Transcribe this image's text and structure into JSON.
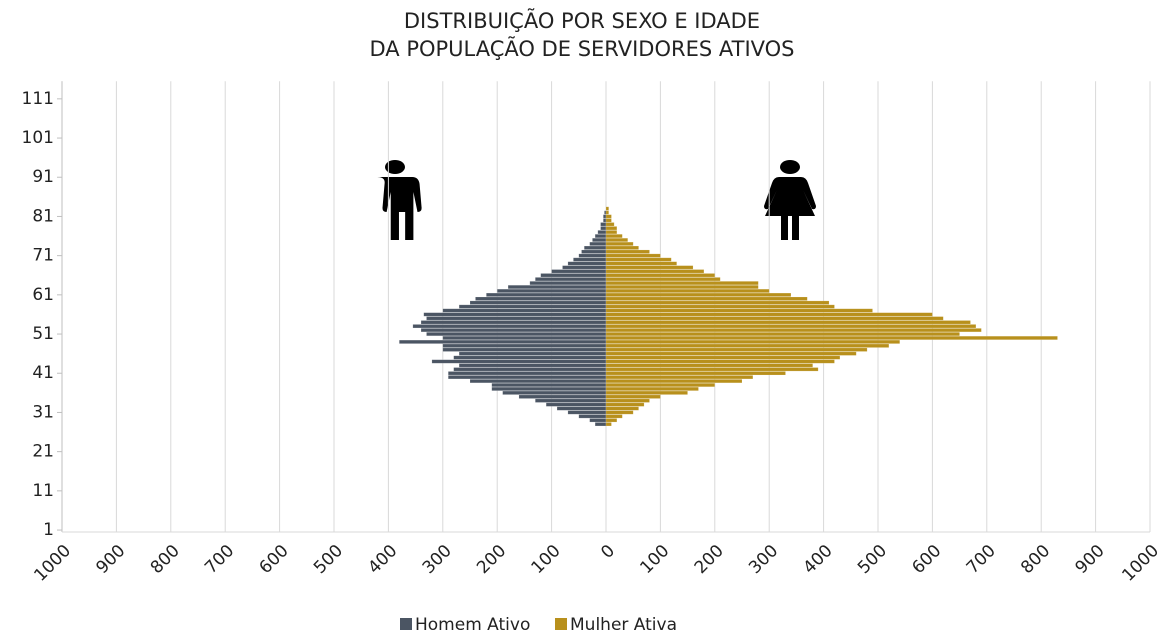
{
  "chart_data": {
    "type": "pyramid",
    "title": [
      "DISTRIBUIÇÃO POR SEXO E IDADE",
      "DA POPULAÇÃO DE SERVIDORES ATIVOS"
    ],
    "categories": [
      1,
      null,
      null,
      null,
      null,
      null,
      null,
      null,
      null,
      null,
      11,
      null,
      null,
      null,
      null,
      null,
      null,
      null,
      null,
      null,
      21,
      null,
      null,
      null,
      null,
      null,
      null,
      null,
      null,
      null,
      31,
      null,
      null,
      null,
      null,
      null,
      null,
      null,
      null,
      null,
      41,
      null,
      null,
      null,
      null,
      null,
      null,
      null,
      null,
      null,
      51,
      null,
      null,
      null,
      null,
      null,
      null,
      null,
      null,
      null,
      61,
      null,
      null,
      null,
      null,
      null,
      null,
      null,
      null,
      null,
      71,
      null,
      null,
      null,
      null,
      null,
      null,
      null,
      null,
      null,
      81,
      null,
      null,
      null,
      null,
      null,
      null,
      null,
      null,
      null,
      91,
      null,
      null,
      null,
      null,
      null,
      null,
      null,
      null,
      null,
      101,
      null,
      null,
      null,
      null,
      null,
      null,
      null,
      null,
      null,
      111,
      null,
      null,
      null,
      null
    ],
    "series": [
      {
        "name": "Homem Ativo",
        "color": "#4b5563",
        "values": [
          0,
          0,
          0,
          0,
          0,
          0,
          0,
          0,
          0,
          0,
          0,
          0,
          0,
          0,
          0,
          0,
          0,
          0,
          0,
          0,
          0,
          0,
          0,
          0,
          0,
          0,
          0,
          -20,
          -30,
          -50,
          -70,
          -90,
          -110,
          -130,
          -160,
          -190,
          -210,
          -210,
          -250,
          -290,
          -290,
          -280,
          -270,
          -320,
          -280,
          -270,
          -300,
          -300,
          -380,
          -300,
          -330,
          -340,
          -355,
          -340,
          -330,
          -335,
          -300,
          -270,
          -250,
          -240,
          -220,
          -200,
          -180,
          -140,
          -130,
          -120,
          -100,
          -80,
          -70,
          -60,
          -50,
          -45,
          -40,
          -30,
          -25,
          -20,
          -15,
          -10,
          -10,
          -5,
          -5,
          -3,
          0,
          0,
          0,
          0,
          0,
          0,
          0,
          0,
          0,
          0,
          0,
          0,
          0,
          0,
          0,
          0,
          0,
          0,
          0,
          0,
          0,
          0,
          0,
          0,
          0,
          0,
          0,
          0,
          0,
          0,
          0,
          0,
          0
        ]
      },
      {
        "name": "Mulher Ativa",
        "color": "#b8901c",
        "values": [
          0,
          0,
          0,
          0,
          0,
          0,
          0,
          0,
          0,
          0,
          0,
          0,
          0,
          0,
          0,
          0,
          0,
          0,
          0,
          0,
          0,
          0,
          0,
          0,
          0,
          0,
          0,
          10,
          20,
          30,
          50,
          60,
          70,
          80,
          100,
          150,
          170,
          200,
          250,
          270,
          330,
          390,
          380,
          420,
          430,
          460,
          480,
          520,
          540,
          830,
          650,
          690,
          680,
          670,
          620,
          600,
          490,
          420,
          410,
          370,
          340,
          300,
          280,
          280,
          210,
          200,
          180,
          160,
          130,
          120,
          100,
          80,
          60,
          50,
          40,
          30,
          20,
          20,
          15,
          10,
          10,
          5,
          5,
          0,
          0,
          0,
          0,
          0,
          0,
          0,
          0,
          0,
          0,
          0,
          0,
          0,
          0,
          0,
          0,
          0,
          0,
          0,
          0,
          0,
          0,
          0,
          0,
          0,
          0,
          0,
          0,
          0,
          0,
          0,
          0
        ]
      }
    ],
    "xlim": [
      -1000,
      1000
    ],
    "xticks": [
      {
        "value": -1000,
        "label": "1000"
      },
      {
        "value": -900,
        "label": "900"
      },
      {
        "value": -800,
        "label": "800"
      },
      {
        "value": -700,
        "label": "700"
      },
      {
        "value": -600,
        "label": "600"
      },
      {
        "value": -500,
        "label": "500"
      },
      {
        "value": -400,
        "label": "400"
      },
      {
        "value": -300,
        "label": "300"
      },
      {
        "value": -200,
        "label": "200"
      },
      {
        "value": -100,
        "label": "100"
      },
      0,
      100,
      200,
      300,
      400,
      500,
      600,
      700,
      800,
      900,
      1000
    ],
    "grid": true,
    "legend": "bottom"
  }
}
